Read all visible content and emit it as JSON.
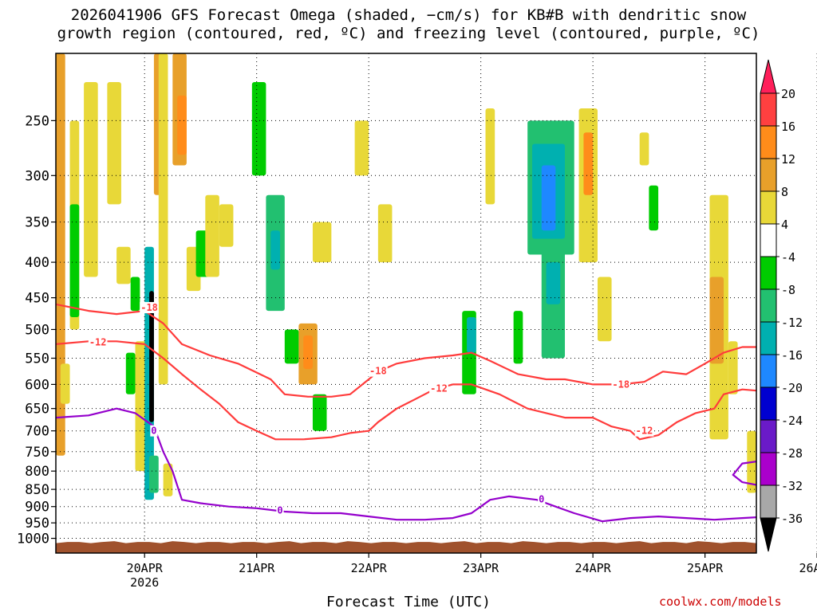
{
  "title": {
    "line1": "2026041906 GFS Forecast Omega (shaded, −cm/s) for KB#B with dendritic snow",
    "line2": "growth region (contoured, red, ºC) and freezing level (contoured, purple, ºC)"
  },
  "footer": {
    "xlabel": "Forecast Time (UTC)",
    "credit": "coolwx.com/models"
  },
  "chart_data": {
    "type": "heatmap",
    "title": "2026041906 GFS Forecast Omega (shaded, −cm/s) for KB#B with dendritic snow growth region (contoured, red, ºC) and freezing level (contoured, purple, ºC)",
    "xlabel": "Forecast Time (UTC)",
    "ylabel": "Pressure (hPa)",
    "x_unit": "hours since 2026-04-20 00Z",
    "xlim": [
      -19,
      131
    ],
    "ylim": [
      1050,
      200
    ],
    "x_ticks": [
      {
        "hour": 0,
        "label": "20APR",
        "sub": "2026"
      },
      {
        "hour": 24,
        "label": "21APR",
        "sub": ""
      },
      {
        "hour": 48,
        "label": "22APR",
        "sub": ""
      },
      {
        "hour": 72,
        "label": "23APR",
        "sub": ""
      },
      {
        "hour": 96,
        "label": "24APR",
        "sub": ""
      },
      {
        "hour": 120,
        "label": "25APR",
        "sub": ""
      },
      {
        "hour": 144,
        "label": "26APR",
        "sub": ""
      }
    ],
    "y_ticks": [
      "250",
      "300",
      "350",
      "400",
      "450",
      "500",
      "550",
      "600",
      "650",
      "700",
      "750",
      "800",
      "850",
      "900",
      "950",
      "1000"
    ],
    "colorbar": {
      "labels": [
        "20",
        "16",
        "12",
        "8",
        "4",
        "-4",
        "-8",
        "-12",
        "-16",
        "-20",
        "-24",
        "-28",
        "-32",
        "-36"
      ],
      "colors": [
        "#ff1f5a",
        "#ff4040",
        "#ff8c1a",
        "#e8a02a",
        "#e8d838",
        "#ffffff",
        "#00cc00",
        "#22c070",
        "#00b0b0",
        "#1e88ff",
        "#0000d0",
        "#6a1ac8",
        "#aa00cc",
        "#a8a8a8",
        "#000000"
      ]
    },
    "omega_cells": [
      {
        "x": [
          -19,
          -17
        ],
        "p": [
          200,
          760
        ],
        "v": 8
      },
      {
        "x": [
          -16,
          -14
        ],
        "p": [
          250,
          500
        ],
        "v": 6
      },
      {
        "x": [
          -13,
          -10
        ],
        "p": [
          220,
          420
        ],
        "v": 5
      },
      {
        "x": [
          -16,
          -14
        ],
        "p": [
          330,
          480
        ],
        "v": -6
      },
      {
        "x": [
          -18,
          -16
        ],
        "p": [
          560,
          640
        ],
        "v": 5
      },
      {
        "x": [
          -8,
          -5
        ],
        "p": [
          220,
          330
        ],
        "v": 6
      },
      {
        "x": [
          -6,
          -3
        ],
        "p": [
          380,
          430
        ],
        "v": 5
      },
      {
        "x": [
          -4,
          -2
        ],
        "p": [
          540,
          620
        ],
        "v": -6
      },
      {
        "x": [
          -3,
          -1
        ],
        "p": [
          420,
          470
        ],
        "v": -6
      },
      {
        "x": [
          -2,
          1
        ],
        "p": [
          520,
          800
        ],
        "v": 6
      },
      {
        "x": [
          0,
          2
        ],
        "p": [
          380,
          880
        ],
        "v": -14
      },
      {
        "x": [
          1,
          2
        ],
        "p": [
          440,
          680
        ],
        "v": -36
      },
      {
        "x": [
          2,
          4
        ],
        "p": [
          200,
          320
        ],
        "v": 10
      },
      {
        "x": [
          3,
          5
        ],
        "p": [
          200,
          600
        ],
        "v": 6
      },
      {
        "x": [
          1,
          3
        ],
        "p": [
          760,
          860
        ],
        "v": -8
      },
      {
        "x": [
          4,
          6
        ],
        "p": [
          780,
          870
        ],
        "v": 5
      },
      {
        "x": [
          6,
          9
        ],
        "p": [
          200,
          290
        ],
        "v": 8
      },
      {
        "x": [
          7,
          9
        ],
        "p": [
          230,
          280
        ],
        "v": 14
      },
      {
        "x": [
          9,
          12
        ],
        "p": [
          380,
          440
        ],
        "v": 5
      },
      {
        "x": [
          11,
          14
        ],
        "p": [
          360,
          420
        ],
        "v": -6
      },
      {
        "x": [
          13,
          16
        ],
        "p": [
          320,
          420
        ],
        "v": 5
      },
      {
        "x": [
          16,
          19
        ],
        "p": [
          330,
          380
        ],
        "v": 6
      },
      {
        "x": [
          23,
          26
        ],
        "p": [
          220,
          300
        ],
        "v": -6
      },
      {
        "x": [
          26,
          30
        ],
        "p": [
          320,
          470
        ],
        "v": -8
      },
      {
        "x": [
          27,
          29
        ],
        "p": [
          360,
          410
        ],
        "v": -12
      },
      {
        "x": [
          33,
          37
        ],
        "p": [
          490,
          600
        ],
        "v": 8
      },
      {
        "x": [
          34,
          36
        ],
        "p": [
          510,
          570
        ],
        "v": 12
      },
      {
        "x": [
          30,
          33
        ],
        "p": [
          500,
          560
        ],
        "v": -6
      },
      {
        "x": [
          36,
          40
        ],
        "p": [
          350,
          400
        ],
        "v": 5
      },
      {
        "x": [
          36,
          39
        ],
        "p": [
          620,
          700
        ],
        "v": -6
      },
      {
        "x": [
          45,
          48
        ],
        "p": [
          250,
          300
        ],
        "v": 6
      },
      {
        "x": [
          50,
          53
        ],
        "p": [
          330,
          400
        ],
        "v": 5
      },
      {
        "x": [
          68,
          71
        ],
        "p": [
          470,
          620
        ],
        "v": -6
      },
      {
        "x": [
          69,
          71
        ],
        "p": [
          480,
          540
        ],
        "v": -12
      },
      {
        "x": [
          73,
          75
        ],
        "p": [
          240,
          330
        ],
        "v": 6
      },
      {
        "x": [
          79,
          81
        ],
        "p": [
          470,
          560
        ],
        "v": -6
      },
      {
        "x": [
          82,
          92
        ],
        "p": [
          250,
          390
        ],
        "v": -8
      },
      {
        "x": [
          83,
          90
        ],
        "p": [
          270,
          370
        ],
        "v": -12
      },
      {
        "x": [
          85,
          88
        ],
        "p": [
          290,
          360
        ],
        "v": -16
      },
      {
        "x": [
          85,
          90
        ],
        "p": [
          380,
          550
        ],
        "v": -8
      },
      {
        "x": [
          86,
          89
        ],
        "p": [
          400,
          460
        ],
        "v": -14
      },
      {
        "x": [
          93,
          97
        ],
        "p": [
          240,
          400
        ],
        "v": 6
      },
      {
        "x": [
          94,
          96
        ],
        "p": [
          260,
          320
        ],
        "v": 12
      },
      {
        "x": [
          97,
          100
        ],
        "p": [
          420,
          520
        ],
        "v": 6
      },
      {
        "x": [
          106,
          108
        ],
        "p": [
          260,
          290
        ],
        "v": 5
      },
      {
        "x": [
          108,
          110
        ],
        "p": [
          310,
          360
        ],
        "v": -6
      },
      {
        "x": [
          121,
          125
        ],
        "p": [
          320,
          720
        ],
        "v": 6
      },
      {
        "x": [
          121,
          124
        ],
        "p": [
          420,
          560
        ],
        "v": 8
      },
      {
        "x": [
          125,
          127
        ],
        "p": [
          520,
          620
        ],
        "v": 5
      },
      {
        "x": [
          138,
          140
        ],
        "p": [
          450,
          510
        ],
        "v": -8
      },
      {
        "x": [
          144,
          146
        ],
        "p": [
          540,
          600
        ],
        "v": 5
      },
      {
        "x": [
          129,
          131
        ],
        "p": [
          700,
          860
        ],
        "v": 6
      }
    ],
    "dgz_contours": [
      {
        "label": "-18",
        "pressure_min": -1,
        "points": [
          [
            -19,
            460
          ],
          [
            -12,
            470
          ],
          [
            -6,
            475
          ],
          [
            0,
            470
          ],
          [
            4,
            490
          ],
          [
            8,
            525
          ],
          [
            14,
            545
          ],
          [
            20,
            560
          ],
          [
            27,
            590
          ],
          [
            30,
            620
          ],
          [
            35,
            625
          ],
          [
            40,
            625
          ],
          [
            44,
            620
          ],
          [
            48,
            590
          ],
          [
            50,
            575
          ],
          [
            54,
            560
          ],
          [
            60,
            550
          ],
          [
            66,
            545
          ],
          [
            70,
            540
          ],
          [
            74,
            555
          ],
          [
            80,
            580
          ],
          [
            86,
            590
          ],
          [
            90,
            590
          ],
          [
            96,
            600
          ],
          [
            102,
            600
          ],
          [
            107,
            595
          ],
          [
            111,
            575
          ],
          [
            116,
            580
          ],
          [
            120,
            560
          ],
          [
            124,
            540
          ],
          [
            128,
            530
          ],
          [
            134,
            530
          ],
          [
            140,
            535
          ],
          [
            148,
            535
          ],
          [
            154,
            545
          ],
          [
            160,
            540
          ],
          [
            166,
            535
          ]
        ]
      },
      {
        "label": "-12",
        "points": [
          [
            -19,
            525
          ],
          [
            -12,
            520
          ],
          [
            -6,
            520
          ],
          [
            0,
            525
          ],
          [
            4,
            550
          ],
          [
            8,
            580
          ],
          [
            12,
            610
          ],
          [
            16,
            640
          ],
          [
            20,
            680
          ],
          [
            24,
            700
          ],
          [
            28,
            720
          ],
          [
            34,
            720
          ],
          [
            40,
            715
          ],
          [
            44,
            705
          ],
          [
            48,
            700
          ],
          [
            50,
            680
          ],
          [
            54,
            650
          ],
          [
            58,
            630
          ],
          [
            62,
            610
          ],
          [
            66,
            600
          ],
          [
            70,
            600
          ],
          [
            76,
            620
          ],
          [
            82,
            650
          ],
          [
            86,
            660
          ],
          [
            90,
            670
          ],
          [
            96,
            670
          ],
          [
            100,
            690
          ],
          [
            104,
            700
          ],
          [
            106,
            720
          ],
          [
            110,
            710
          ],
          [
            114,
            680
          ],
          [
            118,
            660
          ],
          [
            122,
            650
          ],
          [
            124,
            620
          ],
          [
            128,
            610
          ],
          [
            134,
            615
          ],
          [
            140,
            610
          ],
          [
            146,
            620
          ],
          [
            152,
            630
          ],
          [
            158,
            620
          ],
          [
            166,
            600
          ]
        ]
      }
    ],
    "freezing_contours": [
      {
        "label": "0",
        "points": [
          [
            -19,
            670
          ],
          [
            -12,
            665
          ],
          [
            -6,
            650
          ],
          [
            -2,
            660
          ],
          [
            2,
            690
          ],
          [
            4,
            750
          ],
          [
            6,
            800
          ],
          [
            8,
            880
          ],
          [
            12,
            890
          ],
          [
            18,
            900
          ],
          [
            24,
            905
          ],
          [
            30,
            915
          ],
          [
            36,
            920
          ],
          [
            42,
            920
          ],
          [
            48,
            930
          ],
          [
            54,
            940
          ],
          [
            60,
            940
          ],
          [
            66,
            935
          ],
          [
            70,
            920
          ],
          [
            74,
            880
          ],
          [
            78,
            870
          ],
          [
            84,
            880
          ],
          [
            88,
            900
          ],
          [
            92,
            920
          ],
          [
            98,
            945
          ],
          [
            104,
            935
          ],
          [
            110,
            930
          ],
          [
            116,
            935
          ],
          [
            122,
            940
          ],
          [
            128,
            935
          ],
          [
            134,
            930
          ],
          [
            140,
            910
          ],
          [
            146,
            900
          ],
          [
            152,
            890
          ],
          [
            160,
            880
          ],
          [
            166,
            870
          ]
        ]
      },
      {
        "label": "0",
        "closed": true,
        "points": [
          [
            128,
            780
          ],
          [
            134,
            770
          ],
          [
            140,
            760
          ],
          [
            148,
            765
          ],
          [
            154,
            780
          ],
          [
            152,
            820
          ],
          [
            146,
            830
          ],
          [
            140,
            840
          ],
          [
            134,
            845
          ],
          [
            128,
            830
          ],
          [
            126,
            810
          ],
          [
            128,
            780
          ]
        ]
      }
    ],
    "contour_labels": [
      {
        "text": "-18",
        "x": 1,
        "p": 465
      },
      {
        "text": "-12",
        "x": -10,
        "p": 522
      },
      {
        "text": "-18",
        "x": 50,
        "p": 574
      },
      {
        "text": "-12",
        "x": 63,
        "p": 608
      },
      {
        "text": "-18",
        "x": 102,
        "p": 600
      },
      {
        "text": "-12",
        "x": 107,
        "p": 700
      },
      {
        "text": "-18",
        "x": 141,
        "p": 535
      },
      {
        "text": "-12",
        "x": 140,
        "p": 608
      },
      {
        "text": "0",
        "x": 2,
        "p": 700
      },
      {
        "text": "0",
        "x": 29,
        "p": 912
      },
      {
        "text": "0",
        "x": 85,
        "p": 878
      },
      {
        "text": "0",
        "x": 140,
        "p": 762
      },
      {
        "text": "0",
        "x": 136,
        "p": 898
      }
    ]
  }
}
